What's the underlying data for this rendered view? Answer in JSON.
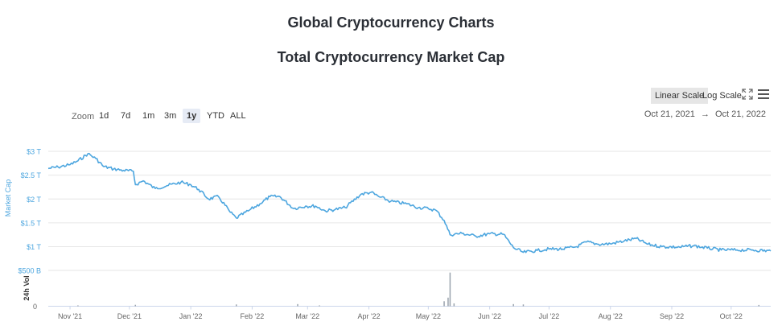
{
  "header": {
    "title": "Global Cryptocurrency Charts",
    "subtitle": "Total Cryptocurrency Market Cap"
  },
  "toolbar": {
    "linear_scale": "Linear Scale",
    "log_scale": "Log Scale",
    "fullscreen_icon": "fullscreen-icon",
    "menu_icon": "hamburger-menu-icon"
  },
  "zoom": {
    "label": "Zoom",
    "buttons": [
      "1d",
      "7d",
      "1m",
      "3m",
      "1y",
      "YTD",
      "ALL"
    ],
    "active": "1y"
  },
  "date_range": {
    "from": "Oct 21, 2021",
    "arrow": "→",
    "to": "Oct 21, 2022"
  },
  "chart_data": {
    "type": "line",
    "ylabel": "Market Cap",
    "vol_ylabel": "24h Vol",
    "y_ticks": [
      "$3 T",
      "$2.5 T",
      "$2 T",
      "$1.5 T",
      "$1 T"
    ],
    "vol_ticks": [
      "$500 B",
      "0"
    ],
    "x_ticks": [
      "Nov '21",
      "Dec '21",
      "Jan '22",
      "Feb '22",
      "Mar '22",
      "Apr '22",
      "May '22",
      "Jun '22",
      "Jul '22",
      "Aug '22",
      "Sep '22",
      "Oct '22"
    ],
    "ylim": [
      0.75,
      3.1
    ],
    "grid": true,
    "series": [
      {
        "color": "#4da6df",
        "x": [
          "2021-10-21",
          "2021-10-26",
          "2021-11-01",
          "2021-11-05",
          "2021-11-10",
          "2021-11-14",
          "2021-11-18",
          "2021-11-23",
          "2021-11-28",
          "2021-12-03",
          "2021-12-04",
          "2021-12-08",
          "2021-12-14",
          "2021-12-20",
          "2021-12-27",
          "2022-01-01",
          "2022-01-05",
          "2022-01-10",
          "2022-01-15",
          "2022-01-21",
          "2022-01-24",
          "2022-01-30",
          "2022-02-05",
          "2022-02-10",
          "2022-02-15",
          "2022-02-22",
          "2022-02-28",
          "2022-03-05",
          "2022-03-10",
          "2022-03-15",
          "2022-03-20",
          "2022-03-28",
          "2022-04-02",
          "2022-04-06",
          "2022-04-12",
          "2022-04-20",
          "2022-04-26",
          "2022-05-01",
          "2022-05-05",
          "2022-05-09",
          "2022-05-12",
          "2022-05-18",
          "2022-05-25",
          "2022-06-01",
          "2022-06-08",
          "2022-06-13",
          "2022-06-18",
          "2022-06-25",
          "2022-07-01",
          "2022-07-08",
          "2022-07-15",
          "2022-07-20",
          "2022-07-26",
          "2022-08-01",
          "2022-08-08",
          "2022-08-14",
          "2022-08-20",
          "2022-08-27",
          "2022-09-05",
          "2022-09-12",
          "2022-09-19",
          "2022-09-26",
          "2022-10-04",
          "2022-10-12",
          "2022-10-21"
        ],
        "values": [
          2.64,
          2.67,
          2.72,
          2.8,
          2.95,
          2.85,
          2.68,
          2.63,
          2.6,
          2.58,
          2.3,
          2.38,
          2.22,
          2.28,
          2.35,
          2.3,
          2.2,
          2.0,
          2.05,
          1.72,
          1.6,
          1.75,
          1.9,
          2.05,
          2.05,
          1.8,
          1.85,
          1.85,
          1.75,
          1.78,
          1.82,
          2.1,
          2.14,
          2.05,
          1.95,
          1.9,
          1.82,
          1.8,
          1.76,
          1.55,
          1.25,
          1.28,
          1.22,
          1.27,
          1.26,
          0.98,
          0.88,
          0.92,
          0.95,
          0.95,
          1.0,
          1.1,
          1.05,
          1.06,
          1.12,
          1.17,
          1.05,
          1.0,
          0.99,
          1.02,
          0.97,
          0.93,
          0.93,
          0.93,
          0.91
        ]
      }
    ],
    "volume": {
      "dates": [
        "2021-11-05",
        "2021-12-04",
        "2022-01-24",
        "2022-02-24",
        "2022-03-07",
        "2022-05-09",
        "2022-05-11",
        "2022-05-12",
        "2022-05-14",
        "2022-06-13",
        "2022-06-18",
        "2022-10-15"
      ],
      "values": [
        12,
        20,
        25,
        30,
        12,
        70,
        120,
        470,
        40,
        30,
        25,
        18
      ],
      "unit": "B"
    }
  }
}
